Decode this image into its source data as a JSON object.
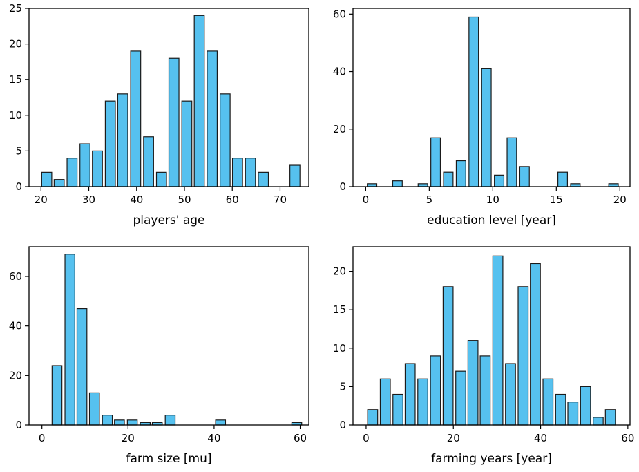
{
  "colors": {
    "bar_fill": "#56c1ef",
    "bar_edge": "#1a1a1a",
    "axes": "#000000"
  },
  "chart_data": [
    {
      "type": "bar",
      "xlabel": "players' age",
      "ylabel": "",
      "xlim": [
        17.5,
        76
      ],
      "ylim": [
        0,
        25
      ],
      "xticks": [
        20,
        30,
        40,
        50,
        60,
        70
      ],
      "yticks": [
        0,
        5,
        10,
        15,
        20,
        25
      ],
      "bar_width": 2.1,
      "grid": false,
      "x": [
        21.2,
        23.8,
        26.5,
        29.2,
        31.8,
        34.5,
        37.1,
        39.8,
        42.5,
        45.2,
        47.8,
        50.5,
        53.1,
        55.8,
        58.5,
        61.1,
        63.8,
        66.5,
        73.1
      ],
      "values": [
        2,
        1,
        4,
        6,
        5,
        12,
        13,
        19,
        7,
        2,
        18,
        12,
        24,
        19,
        13,
        4,
        4,
        2,
        3
      ]
    },
    {
      "type": "bar",
      "xlabel": "education level [year]",
      "ylabel": "",
      "xlim": [
        -1,
        20.8
      ],
      "ylim": [
        0,
        62
      ],
      "xticks": [
        0,
        5,
        10,
        15,
        20
      ],
      "yticks": [
        0,
        20,
        40,
        60
      ],
      "bar_width": 0.75,
      "grid": false,
      "x": [
        0.5,
        2.5,
        4.5,
        5.5,
        6.5,
        7.5,
        8.5,
        9.5,
        10.5,
        11.5,
        12.5,
        15.5,
        16.5,
        19.5
      ],
      "values": [
        1,
        2,
        1,
        17,
        5,
        9,
        59,
        41,
        4,
        17,
        7,
        5,
        1,
        1
      ]
    },
    {
      "type": "bar",
      "xlabel": "farm size [mu]",
      "ylabel": "",
      "xlim": [
        -3,
        62
      ],
      "ylim": [
        0,
        72
      ],
      "xticks": [
        0,
        20,
        40,
        60
      ],
      "yticks": [
        0,
        20,
        40,
        60
      ],
      "bar_width": 2.3,
      "grid": false,
      "x": [
        3.5,
        6.5,
        9.3,
        12.2,
        15.2,
        18,
        21,
        24,
        26.8,
        29.8,
        41.5,
        59.2
      ],
      "values": [
        24,
        69,
        47,
        13,
        4,
        2,
        2,
        1,
        1,
        4,
        2,
        1
      ]
    },
    {
      "type": "bar",
      "xlabel": "farming years [year]",
      "ylabel": "",
      "xlim": [
        -3,
        60.5
      ],
      "ylim": [
        0,
        23.2
      ],
      "xticks": [
        0,
        20,
        40,
        60
      ],
      "yticks": [
        0,
        5,
        10,
        15,
        20
      ],
      "bar_width": 2.3,
      "grid": false,
      "x": [
        1.5,
        4.4,
        7.3,
        10.1,
        13,
        15.9,
        18.8,
        21.7,
        24.5,
        27.3,
        30.2,
        33.1,
        36,
        38.8,
        41.7,
        44.6,
        47.4,
        50.3,
        53.2,
        56
      ],
      "values": [
        2,
        6,
        4,
        8,
        6,
        9,
        18,
        7,
        11,
        9,
        22,
        8,
        18,
        21,
        6,
        4,
        3,
        5,
        1,
        2
      ]
    }
  ]
}
